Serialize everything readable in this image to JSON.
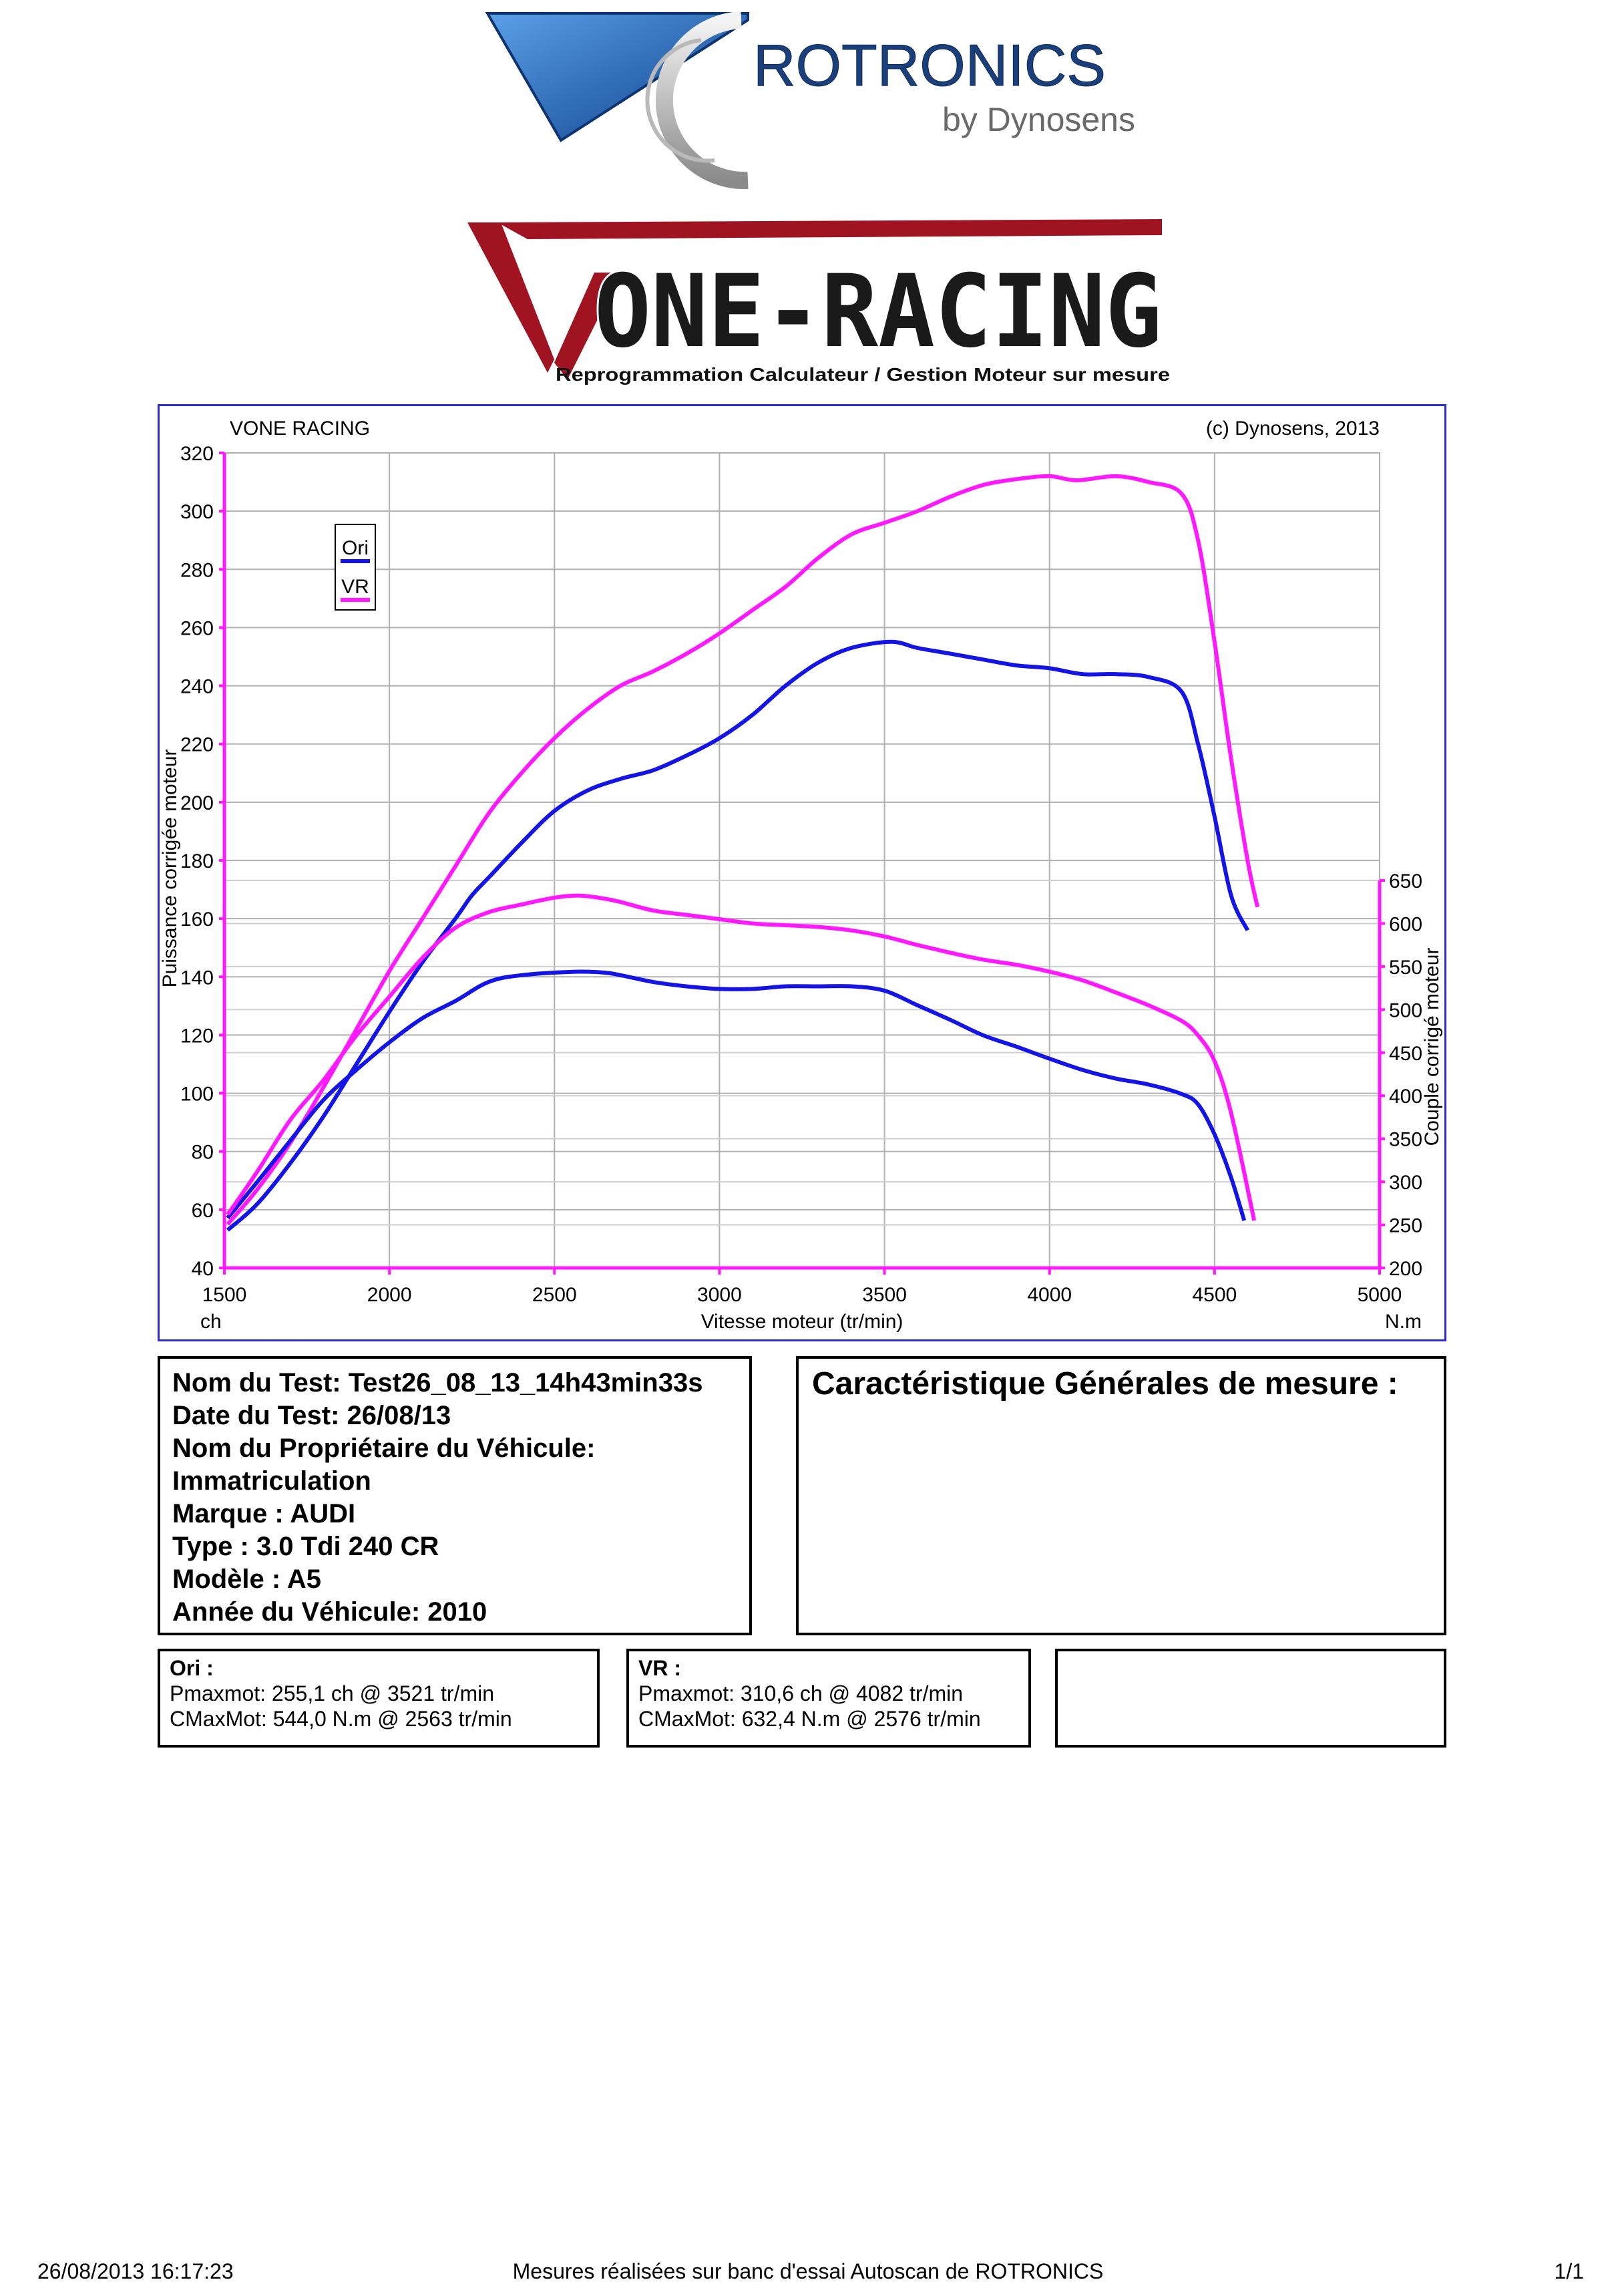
{
  "logos": {
    "rotronics": {
      "name": "ROTRONICS",
      "sub": "by Dynosens"
    },
    "vone": {
      "name": "ONE-RACING",
      "tagline": "Reprogrammation Calculateur / Gestion Moteur sur mesure"
    }
  },
  "chart_data": {
    "type": "line",
    "title": "VONE RACING",
    "copyright": "(c) Dynosens, 2013",
    "xlabel": "Vitesse moteur (tr/min)",
    "xlim": [
      1500,
      5000
    ],
    "x_ticks": [
      1500,
      2000,
      2500,
      3000,
      3500,
      4000,
      4500,
      5000
    ],
    "x_unit_left": "ch",
    "x_unit_right": "N.m",
    "y_left": {
      "label": "Puissance corrigée moteur",
      "lim": [
        40,
        320
      ],
      "ticks": [
        40,
        60,
        80,
        100,
        120,
        140,
        160,
        180,
        200,
        220,
        240,
        260,
        280,
        300,
        320
      ]
    },
    "y_right": {
      "label": "Couple corrigé moteur",
      "lim": [
        200,
        650
      ],
      "ticks": [
        200,
        250,
        300,
        350,
        400,
        450,
        500,
        550,
        600,
        650
      ]
    },
    "grid": true,
    "legend": {
      "placement": "top-left",
      "entries": [
        {
          "name": "Ori",
          "color": "#1414e6"
        },
        {
          "name": "VR",
          "color": "#ff19ff"
        }
      ]
    },
    "series": [
      {
        "name": "Ori",
        "quantity": "power",
        "axis": "left",
        "color": "#1414e6",
        "x": [
          1510,
          1600,
          1700,
          1800,
          1900,
          2000,
          2100,
          2200,
          2250,
          2300,
          2400,
          2500,
          2600,
          2700,
          2800,
          2900,
          3000,
          3100,
          3200,
          3300,
          3400,
          3521,
          3600,
          3700,
          3800,
          3900,
          4000,
          4100,
          4200,
          4300,
          4400,
          4450,
          4500,
          4550,
          4600
        ],
        "y": [
          53,
          62,
          76,
          92,
          110,
          128,
          145,
          160,
          168,
          174,
          186,
          197,
          204,
          208,
          211,
          216,
          222,
          230,
          240,
          248,
          253,
          255.1,
          253,
          251,
          249,
          247,
          246,
          244,
          244,
          243,
          238,
          220,
          195,
          168,
          156
        ]
      },
      {
        "name": "VR",
        "quantity": "power",
        "axis": "left",
        "color": "#ff19ff",
        "x": [
          1510,
          1600,
          1700,
          1800,
          1900,
          2000,
          2100,
          2200,
          2300,
          2400,
          2500,
          2600,
          2700,
          2800,
          2900,
          3000,
          3100,
          3200,
          3300,
          3400,
          3500,
          3600,
          3700,
          3800,
          3900,
          4000,
          4082,
          4200,
          4300,
          4400,
          4450,
          4500,
          4550,
          4600,
          4630
        ],
        "y": [
          55,
          67,
          83,
          102,
          122,
          142,
          160,
          178,
          196,
          210,
          222,
          232,
          240,
          245,
          251,
          258,
          266,
          274,
          284,
          292,
          296,
          300,
          305,
          309,
          311,
          312,
          310.6,
          312,
          310,
          306,
          290,
          255,
          215,
          180,
          164
        ]
      },
      {
        "name": "Ori",
        "quantity": "torque",
        "axis": "right",
        "color": "#1414e6",
        "x": [
          1510,
          1600,
          1700,
          1800,
          1900,
          2000,
          2100,
          2200,
          2300,
          2400,
          2563,
          2650,
          2700,
          2800,
          2900,
          3000,
          3100,
          3200,
          3300,
          3400,
          3500,
          3600,
          3700,
          3800,
          3900,
          4000,
          4100,
          4200,
          4300,
          4400,
          4450,
          4500,
          4550,
          4590
        ],
        "y": [
          258,
          300,
          348,
          395,
          430,
          462,
          490,
          510,
          532,
          540,
          544,
          543,
          540,
          532,
          527,
          524,
          524,
          527,
          527,
          527,
          522,
          505,
          488,
          470,
          457,
          443,
          430,
          420,
          413,
          402,
          390,
          355,
          305,
          255
        ]
      },
      {
        "name": "VR",
        "quantity": "torque",
        "axis": "right",
        "color": "#ff19ff",
        "x": [
          1510,
          1600,
          1700,
          1800,
          1900,
          2000,
          2100,
          2200,
          2300,
          2400,
          2500,
          2576,
          2650,
          2700,
          2800,
          2900,
          3000,
          3100,
          3200,
          3300,
          3400,
          3500,
          3600,
          3700,
          3800,
          3900,
          4000,
          4100,
          4200,
          4300,
          4400,
          4450,
          4500,
          4550,
          4620
        ],
        "y": [
          262,
          312,
          372,
          418,
          470,
          515,
          560,
          595,
          613,
          622,
          630,
          632.4,
          629,
          625,
          615,
          610,
          605,
          600,
          598,
          596,
          592,
          585,
          575,
          566,
          558,
          552,
          544,
          534,
          520,
          505,
          487,
          470,
          440,
          380,
          255
        ]
      }
    ]
  },
  "test_info": [
    "Nom du Test: Test26_08_13_14h43min33s",
    "Date du Test: 26/08/13",
    "Nom du Propriétaire du Véhicule:",
    "Immatriculation",
    "Marque  : AUDI",
    "Type  : 3.0 Tdi 240 CR",
    "Modèle  : A5",
    "Année du Véhicule: 2010"
  ],
  "carac_title": "Caractéristique Générales de mesure :",
  "results": {
    "ori": {
      "header": "Ori :",
      "line1": "Pmaxmot: 255,1 ch @ 3521 tr/min",
      "line2": "CMaxMot: 544,0 N.m @ 2563 tr/min"
    },
    "vr": {
      "header": "VR :",
      "line1": "Pmaxmot: 310,6 ch @ 4082 tr/min",
      "line2": "CMaxMot: 632,4 N.m @ 2576 tr/min"
    }
  },
  "footer": {
    "left": "26/08/2013 16:17:23",
    "center": "Mesures réalisées sur banc d'essai Autoscan de ROTRONICS",
    "right": "1/1"
  }
}
